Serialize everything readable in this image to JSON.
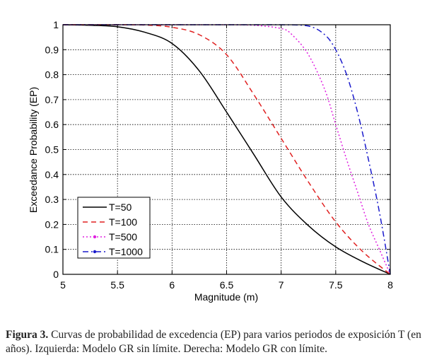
{
  "chart_data": {
    "type": "line",
    "title": "",
    "xlabel": "Magnitude (m)",
    "ylabel": "Exceedance Probability (EP)",
    "xlim": [
      5,
      8
    ],
    "ylim": [
      0,
      1
    ],
    "xticks": [
      "5",
      "5.5",
      "6",
      "6.5",
      "7",
      "7.5",
      "8"
    ],
    "yticks": [
      "0",
      "0.1",
      "0.2",
      "0.3",
      "0.4",
      "0.5",
      "0.6",
      "0.7",
      "0.8",
      "0.9",
      "1"
    ],
    "grid": true,
    "legend_position": "bottom-left",
    "series": [
      {
        "name": "T=50",
        "color": "#000000",
        "style": "solid",
        "x": [
          5,
          5.25,
          5.5,
          5.75,
          6,
          6.25,
          6.5,
          6.75,
          7,
          7.25,
          7.5,
          7.75,
          8
        ],
        "y": [
          1.0,
          0.998,
          0.992,
          0.97,
          0.925,
          0.815,
          0.65,
          0.48,
          0.31,
          0.195,
          0.11,
          0.05,
          0.0
        ]
      },
      {
        "name": "T=100",
        "color": "#e02020",
        "style": "dashed",
        "x": [
          5,
          5.5,
          5.75,
          6,
          6.25,
          6.5,
          6.75,
          7,
          7.25,
          7.5,
          7.75,
          8
        ],
        "y": [
          1.0,
          1.0,
          0.999,
          0.99,
          0.96,
          0.88,
          0.72,
          0.545,
          0.37,
          0.21,
          0.09,
          0.0
        ]
      },
      {
        "name": "T=500",
        "color": "#e020e0",
        "style": "dotted",
        "x": [
          5,
          6,
          6.5,
          6.75,
          7,
          7.1,
          7.25,
          7.4,
          7.5,
          7.6,
          7.7,
          7.8,
          7.9,
          8
        ],
        "y": [
          1.0,
          1.0,
          1.0,
          0.998,
          0.985,
          0.96,
          0.88,
          0.74,
          0.6,
          0.46,
          0.33,
          0.2,
          0.1,
          0.0
        ]
      },
      {
        "name": "T=1000",
        "color": "#1a1acc",
        "style": "dashdot",
        "x": [
          5,
          6.5,
          7,
          7.25,
          7.4,
          7.5,
          7.6,
          7.7,
          7.8,
          7.9,
          8
        ],
        "y": [
          1.0,
          1.0,
          1.0,
          0.995,
          0.96,
          0.9,
          0.8,
          0.65,
          0.46,
          0.25,
          0.0
        ]
      }
    ]
  },
  "caption": {
    "label": "Figura 3.",
    "text": " Curvas de probabilidad de excedencia (EP) para varios periodos de exposición T (en años). Izquierda: Modelo GR sin límite. Derecha: Modelo GR con límite."
  }
}
